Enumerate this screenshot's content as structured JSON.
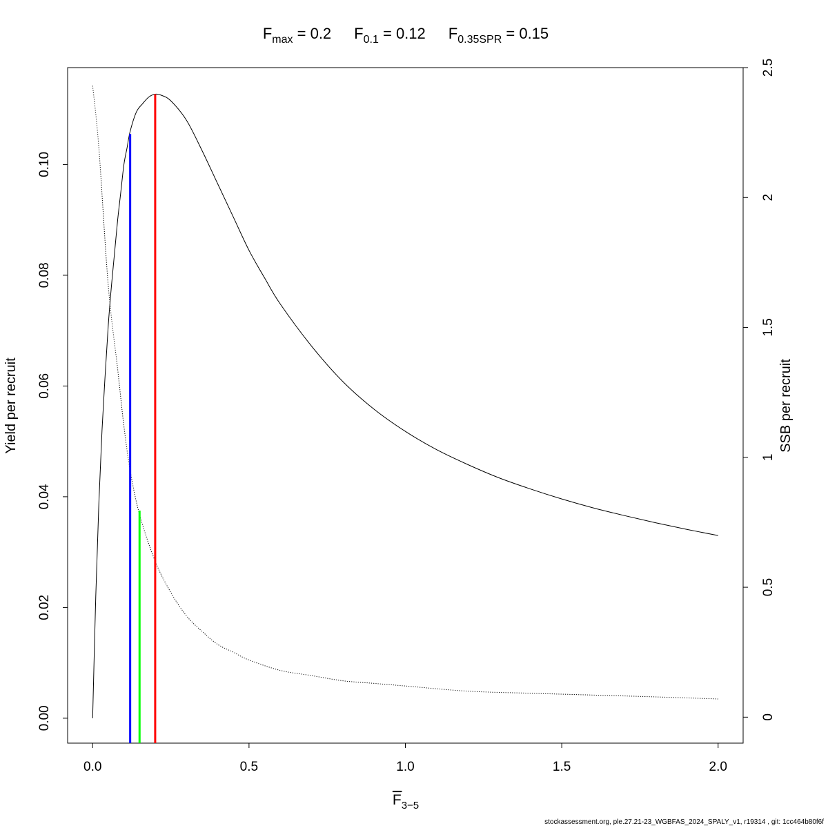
{
  "chart_data": {
    "type": "line",
    "title": {
      "parts": [
        {
          "base": "F",
          "sub": "max",
          "value": "0.2"
        },
        {
          "base": "F",
          "sub": "0.1",
          "value": "0.12"
        },
        {
          "base": "F",
          "sub": "0.35SPR",
          "value": "0.15"
        }
      ]
    },
    "xlabel": {
      "base": "F",
      "sub": "3−5"
    },
    "ylabel": "Yield per recruit",
    "y2label": "SSB per recruit",
    "xlim": [
      -0.08,
      2.08
    ],
    "ylim": [
      -0.0045,
      0.1175
    ],
    "y2lim": [
      -0.1,
      2.5
    ],
    "x_ticks": [
      0.0,
      0.5,
      1.0,
      1.5,
      2.0
    ],
    "x_tick_labels": [
      "0.0",
      "0.5",
      "1.0",
      "1.5",
      "2.0"
    ],
    "y_ticks": [
      0.0,
      0.02,
      0.04,
      0.06,
      0.08,
      0.1
    ],
    "y_tick_labels": [
      "0.00",
      "0.02",
      "0.04",
      "0.06",
      "0.08",
      "0.10"
    ],
    "y2_ticks": [
      0,
      0.5,
      1,
      1.5,
      2,
      2.5
    ],
    "y2_tick_labels": [
      "0",
      "0.5",
      "1",
      "1.5",
      "2",
      "2.5"
    ],
    "grid": false,
    "series": [
      {
        "axis": "left",
        "style": "solid",
        "color": "#000000",
        "points": [
          [
            0,
            0
          ],
          [
            0.01,
            0.022
          ],
          [
            0.02,
            0.039
          ],
          [
            0.03,
            0.052
          ],
          [
            0.04,
            0.062
          ],
          [
            0.05,
            0.071
          ],
          [
            0.06,
            0.078
          ],
          [
            0.07,
            0.084
          ],
          [
            0.08,
            0.09
          ],
          [
            0.09,
            0.095
          ],
          [
            0.1,
            0.1
          ],
          [
            0.11,
            0.103
          ],
          [
            0.12,
            0.106
          ],
          [
            0.14,
            0.1095
          ],
          [
            0.16,
            0.111
          ],
          [
            0.18,
            0.1122
          ],
          [
            0.2,
            0.1127
          ],
          [
            0.22,
            0.1125
          ],
          [
            0.25,
            0.1115
          ],
          [
            0.3,
            0.108
          ],
          [
            0.35,
            0.1025
          ],
          [
            0.4,
            0.0965
          ],
          [
            0.45,
            0.0905
          ],
          [
            0.5,
            0.0845
          ],
          [
            0.55,
            0.0795
          ],
          [
            0.6,
            0.0748
          ],
          [
            0.7,
            0.0672
          ],
          [
            0.8,
            0.0608
          ],
          [
            0.9,
            0.0558
          ],
          [
            1.0,
            0.0518
          ],
          [
            1.1,
            0.0485
          ],
          [
            1.2,
            0.0458
          ],
          [
            1.3,
            0.0434
          ],
          [
            1.4,
            0.0414
          ],
          [
            1.5,
            0.0396
          ],
          [
            1.6,
            0.038
          ],
          [
            1.7,
            0.0366
          ],
          [
            1.8,
            0.0353
          ],
          [
            1.9,
            0.0341
          ],
          [
            2.0,
            0.033
          ]
        ],
        "scaled_from": "solid_left"
      },
      {
        "axis": "right",
        "style": "dotted",
        "color": "#000000",
        "points": [
          [
            0,
            2.43
          ],
          [
            0.02,
            2.19
          ],
          [
            0.05,
            1.66
          ],
          [
            0.08,
            1.34
          ],
          [
            0.1,
            1.12
          ],
          [
            0.12,
            0.95
          ],
          [
            0.15,
            0.78
          ],
          [
            0.2,
            0.6
          ],
          [
            0.25,
            0.48
          ],
          [
            0.3,
            0.39
          ],
          [
            0.35,
            0.33
          ],
          [
            0.4,
            0.28
          ],
          [
            0.45,
            0.25
          ],
          [
            0.5,
            0.22
          ],
          [
            0.6,
            0.18
          ],
          [
            0.7,
            0.16
          ],
          [
            0.8,
            0.14
          ],
          [
            0.9,
            0.13
          ],
          [
            1.0,
            0.12
          ],
          [
            1.2,
            0.1
          ],
          [
            1.4,
            0.092
          ],
          [
            1.6,
            0.085
          ],
          [
            1.8,
            0.078
          ],
          [
            2.0,
            0.07
          ]
        ]
      }
    ],
    "reference_lines": [
      {
        "x": 0.12,
        "y_top": 0.1055,
        "color": "#0000ff"
      },
      {
        "x": 0.15,
        "y_top": 0.0375,
        "color": "#00ff00"
      },
      {
        "x": 0.2,
        "y_top": 0.1127,
        "color": "#ff0000"
      }
    ]
  },
  "footer": "stockassessment.org, ple.27.21-23_WGBFAS_2024_SPALY_v1, r19314 , git: 1cc464b80f6f"
}
